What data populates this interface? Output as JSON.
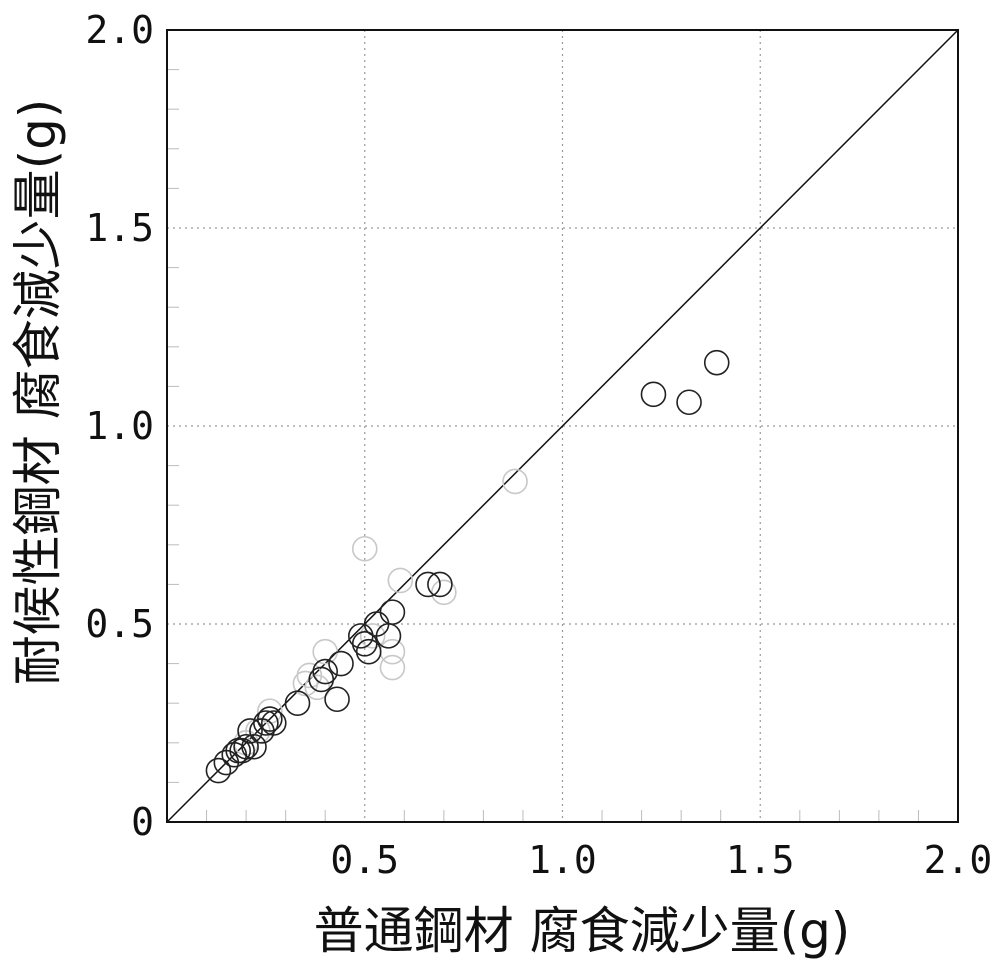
{
  "chart_data": {
    "type": "scatter",
    "title": "",
    "xlabel": "普通鋼材 腐食減少量(g)",
    "ylabel": "耐候性鋼材 腐食減少量(g)",
    "xlim": [
      0,
      2.0
    ],
    "ylim": [
      0,
      2.0
    ],
    "x_ticks": [
      "0.5",
      "1.0",
      "1.5",
      "2.0"
    ],
    "y_ticks": [
      "0",
      "0.5",
      "1.0",
      "1.5",
      "2.0"
    ],
    "grid": true,
    "reference_line": "y = x",
    "colors": {
      "dark_series": "#222222",
      "light_series": "#c8c8c8",
      "grid": "#999999"
    },
    "series": [
      {
        "points": [
          [
            0.13,
            0.13
          ],
          [
            0.15,
            0.15
          ],
          [
            0.17,
            0.17
          ],
          [
            0.18,
            0.18
          ],
          [
            0.19,
            0.18
          ],
          [
            0.2,
            0.19
          ],
          [
            0.21,
            0.23
          ],
          [
            0.22,
            0.19
          ],
          [
            0.24,
            0.23
          ],
          [
            0.25,
            0.25
          ],
          [
            0.26,
            0.26
          ],
          [
            0.27,
            0.25
          ],
          [
            0.33,
            0.3
          ],
          [
            0.39,
            0.36
          ],
          [
            0.4,
            0.38
          ],
          [
            0.43,
            0.31
          ],
          [
            0.44,
            0.4
          ],
          [
            0.49,
            0.47
          ],
          [
            0.5,
            0.45
          ],
          [
            0.51,
            0.43
          ],
          [
            0.53,
            0.5
          ],
          [
            0.56,
            0.47
          ],
          [
            0.57,
            0.53
          ],
          [
            0.66,
            0.6
          ],
          [
            0.69,
            0.6
          ],
          [
            1.23,
            1.08
          ],
          [
            1.32,
            1.06
          ],
          [
            1.39,
            1.16
          ]
        ]
      },
      {
        "points": [
          [
            0.2,
            0.2
          ],
          [
            0.23,
            0.23
          ],
          [
            0.26,
            0.28
          ],
          [
            0.35,
            0.35
          ],
          [
            0.36,
            0.37
          ],
          [
            0.38,
            0.34
          ],
          [
            0.4,
            0.43
          ],
          [
            0.5,
            0.69
          ],
          [
            0.52,
            0.47
          ],
          [
            0.57,
            0.43
          ],
          [
            0.57,
            0.39
          ],
          [
            0.59,
            0.61
          ],
          [
            0.7,
            0.58
          ],
          [
            0.88,
            0.86
          ]
        ]
      }
    ]
  }
}
